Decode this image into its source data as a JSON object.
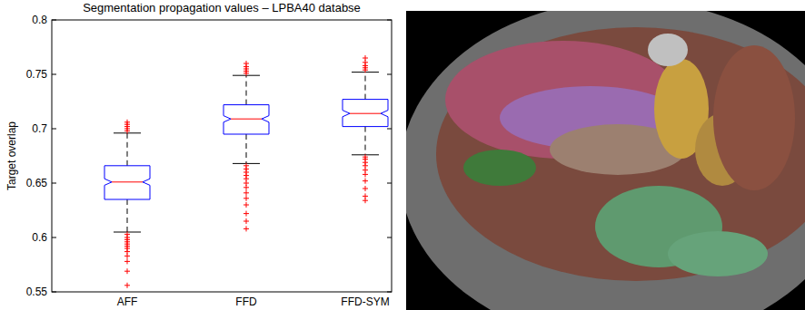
{
  "chart_data": {
    "type": "box",
    "title": "Segmentation propagation values – LPBA40 databse",
    "y_label": "Target overlap",
    "categories": [
      "AFF",
      "FFD",
      "FFD-SYM"
    ],
    "color": "#0000ff",
    "marker": "plus",
    "ylim": [
      0.55,
      0.8
    ],
    "yticks": [
      0.55,
      0.6,
      0.65,
      0.7,
      0.75,
      0.8
    ],
    "boxes": [
      {
        "whisker_low": 0.605,
        "q1": 0.635,
        "median": 0.651,
        "q3": 0.666,
        "whisker_high": 0.696,
        "notch": [
          0.648,
          0.654
        ],
        "outliers": [
          0.698,
          0.7,
          0.702,
          0.704,
          0.706,
          0.603,
          0.6,
          0.598,
          0.596,
          0.594,
          0.592,
          0.59,
          0.587,
          0.583,
          0.578,
          0.569,
          0.556
        ]
      },
      {
        "whisker_low": 0.668,
        "q1": 0.695,
        "median": 0.709,
        "q3": 0.722,
        "whisker_high": 0.749,
        "notch": [
          0.706,
          0.712
        ],
        "outliers": [
          0.751,
          0.753,
          0.755,
          0.757,
          0.76,
          0.666,
          0.663,
          0.66,
          0.657,
          0.654,
          0.65,
          0.646,
          0.641,
          0.636,
          0.63,
          0.622,
          0.615,
          0.608
        ]
      },
      {
        "whisker_low": 0.676,
        "q1": 0.702,
        "median": 0.714,
        "q3": 0.727,
        "whisker_high": 0.752,
        "notch": [
          0.711,
          0.717
        ],
        "outliers": [
          0.754,
          0.756,
          0.758,
          0.761,
          0.765,
          0.674,
          0.672,
          0.669,
          0.666,
          0.662,
          0.658,
          0.652,
          0.645,
          0.638,
          0.634
        ]
      }
    ]
  }
}
